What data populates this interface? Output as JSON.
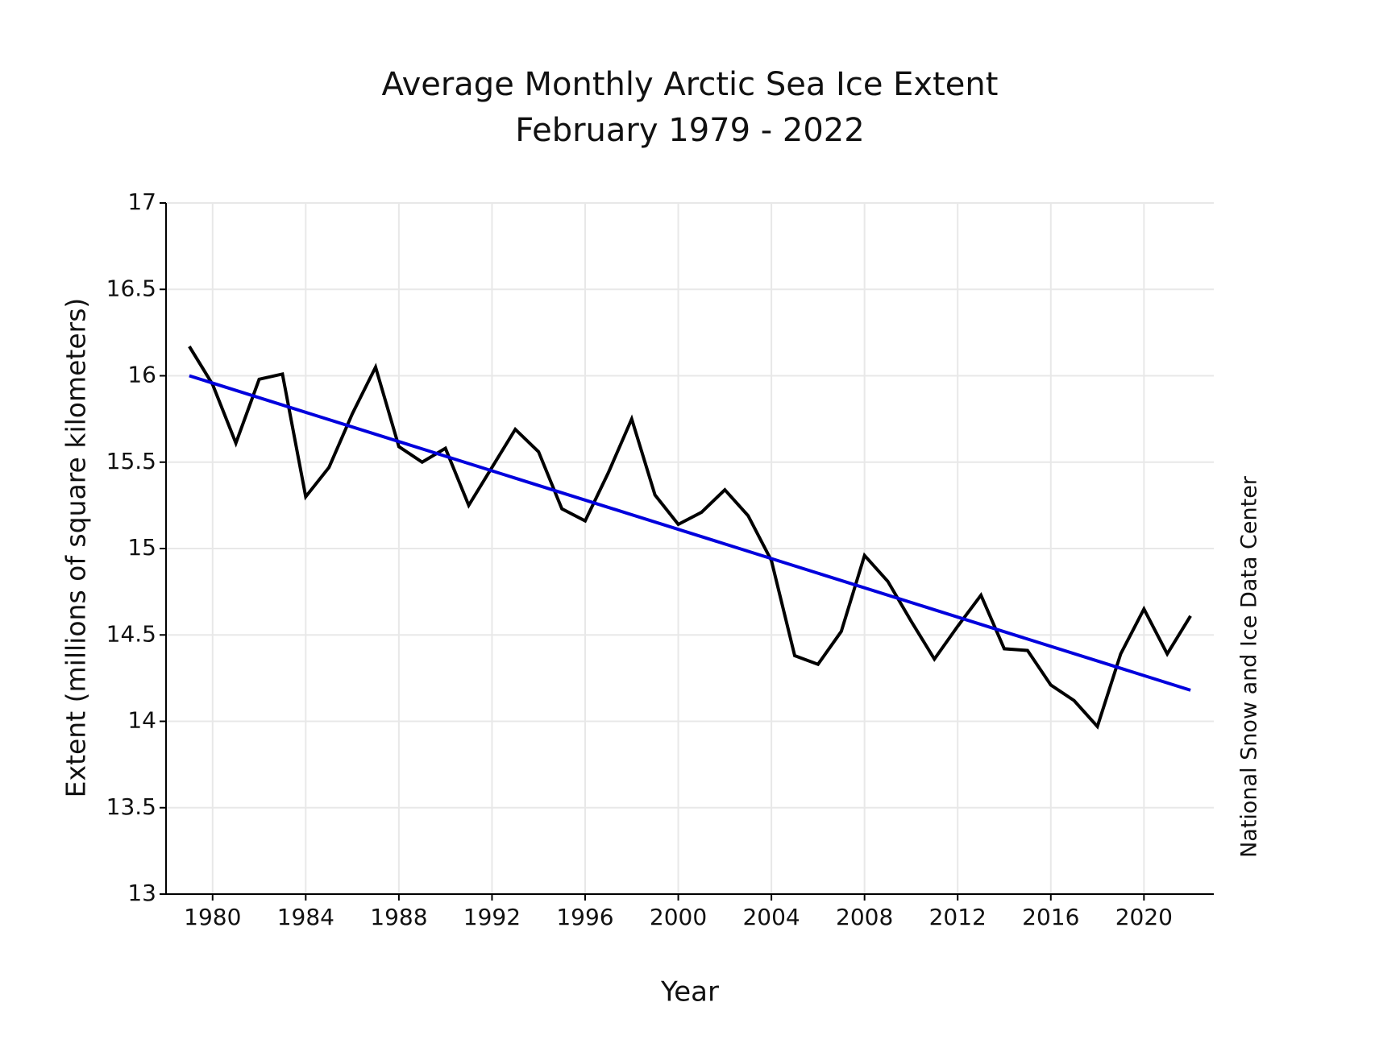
{
  "chart_data": {
    "type": "line",
    "title": "Average Monthly Arctic Sea Ice Extent",
    "subtitle": "February 1979 - 2022",
    "x_label": "Year",
    "y_label": "Extent (millions of square kilometers)",
    "source": "National Snow and Ice Data Center",
    "x": [
      1979,
      1980,
      1981,
      1982,
      1983,
      1984,
      1985,
      1986,
      1987,
      1988,
      1989,
      1990,
      1991,
      1992,
      1993,
      1994,
      1995,
      1996,
      1997,
      1998,
      1999,
      2000,
      2001,
      2002,
      2003,
      2004,
      2005,
      2006,
      2007,
      2008,
      2009,
      2010,
      2011,
      2012,
      2013,
      2014,
      2015,
      2016,
      2017,
      2018,
      2019,
      2020,
      2021,
      2022
    ],
    "series": [
      {
        "color": "#000000",
        "values": [
          16.17,
          15.95,
          15.61,
          15.98,
          16.01,
          15.3,
          15.47,
          15.78,
          16.05,
          15.59,
          15.5,
          15.58,
          15.25,
          15.47,
          15.69,
          15.56,
          15.23,
          15.16,
          15.44,
          15.75,
          15.31,
          15.14,
          15.21,
          15.34,
          15.19,
          14.93,
          14.38,
          14.33,
          14.52,
          14.96,
          14.81,
          14.58,
          14.36,
          14.55,
          14.73,
          14.42,
          14.41,
          14.21,
          14.12,
          13.97,
          14.39,
          14.65,
          14.39,
          14.61
        ]
      },
      {
        "color": "#0000dd",
        "x": [
          1979,
          2022
        ],
        "values": [
          16.0,
          14.18
        ]
      }
    ],
    "xlim": [
      1978,
      2023
    ],
    "xticks": [
      1980,
      1984,
      1988,
      1992,
      1996,
      2000,
      2004,
      2008,
      2012,
      2016,
      2020
    ],
    "ylim": [
      13,
      17
    ],
    "yticks": [
      13,
      13.5,
      14,
      14.5,
      15,
      15.5,
      16,
      16.5,
      17
    ],
    "grid": true
  }
}
